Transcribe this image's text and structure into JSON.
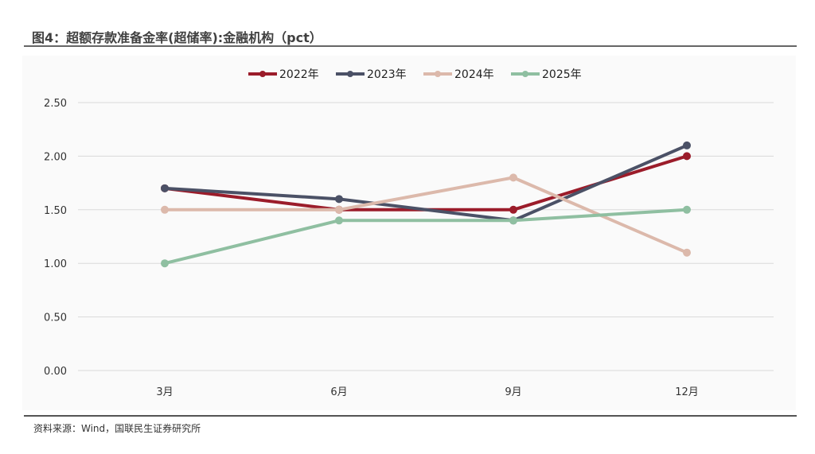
{
  "title": "图4：超额存款准备金率(超储率):金融机构（pct）",
  "source": "资料来源：Wind，国联民生证券研究所",
  "chart_data": {
    "type": "line",
    "title": "图4：超额存款准备金率(超储率):金融机构（pct）",
    "categories": [
      "3月",
      "6月",
      "9月",
      "12月"
    ],
    "ylim": [
      0,
      2.5
    ],
    "yticks": [
      "0.00",
      "0.50",
      "1.00",
      "1.50",
      "2.00",
      "2.50"
    ],
    "grid": true,
    "legend": "top-center",
    "series": [
      {
        "name": "2022年",
        "color": "#9b1c2a",
        "values": [
          1.7,
          1.5,
          1.5,
          2.0
        ]
      },
      {
        "name": "2023年",
        "color": "#4b5166",
        "values": [
          1.7,
          1.6,
          1.4,
          2.1
        ]
      },
      {
        "name": "2024年",
        "color": "#dcb9ab",
        "values": [
          1.5,
          1.5,
          1.8,
          1.1
        ]
      },
      {
        "name": "2025年",
        "color": "#8fbfa1",
        "values": [
          1.0,
          1.4,
          1.4,
          1.5
        ]
      }
    ]
  }
}
